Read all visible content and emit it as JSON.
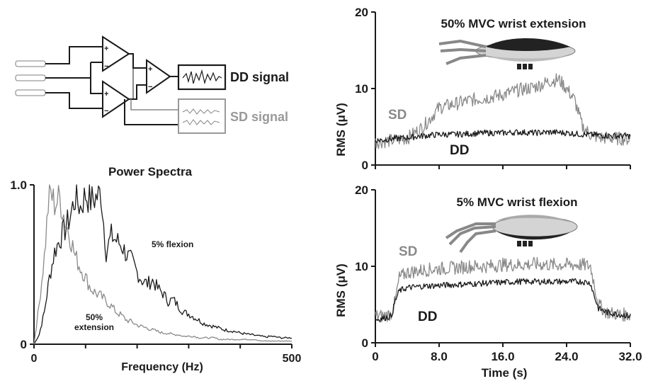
{
  "circuit": {
    "dd_label": "DD signal",
    "sd_label": "SD signal",
    "plus": "+",
    "minus": "−"
  },
  "colors": {
    "dd": "#1a1a1a",
    "sd": "#8a8a8a",
    "bone": "#d4d4d4",
    "muscle": "#222222"
  },
  "chart_data": [
    {
      "type": "line",
      "title": "Power Spectra",
      "xlabel": "Frequency (Hz)",
      "ylabel": "",
      "xlim": [
        0,
        500
      ],
      "ylim": [
        0,
        1.0
      ],
      "xticks": [
        "0",
        "500"
      ],
      "yticks": [
        "0",
        "1.0"
      ],
      "annotations": [
        "5% flexion",
        "50%",
        "extension"
      ],
      "series": [
        {
          "name": "5% flexion",
          "color": "#1a1a1a",
          "x": [
            0,
            10,
            20,
            30,
            40,
            50,
            60,
            70,
            80,
            90,
            100,
            110,
            120,
            130,
            140,
            150,
            160,
            170,
            180,
            190,
            200,
            210,
            220,
            230,
            240,
            250,
            260,
            270,
            280,
            290,
            300,
            310,
            320,
            330,
            340,
            350,
            360,
            370,
            380,
            390,
            400,
            410,
            420,
            430,
            440,
            450,
            460,
            470,
            480,
            490,
            500
          ],
          "y": [
            0.0,
            0.06,
            0.2,
            0.42,
            0.58,
            0.66,
            0.72,
            0.8,
            0.92,
            0.86,
            0.94,
            0.9,
            0.92,
            0.95,
            0.58,
            0.68,
            0.65,
            0.62,
            0.56,
            0.52,
            0.45,
            0.4,
            0.38,
            0.4,
            0.35,
            0.32,
            0.27,
            0.28,
            0.24,
            0.2,
            0.19,
            0.17,
            0.15,
            0.13,
            0.12,
            0.11,
            0.1,
            0.09,
            0.085,
            0.08,
            0.07,
            0.065,
            0.06,
            0.055,
            0.05,
            0.045,
            0.05,
            0.045,
            0.04,
            0.04,
            0.04
          ]
        },
        {
          "name": "50% extension",
          "color": "#8a8a8a",
          "x": [
            0,
            10,
            20,
            30,
            40,
            50,
            60,
            70,
            80,
            90,
            100,
            110,
            120,
            130,
            140,
            150,
            160,
            170,
            180,
            190,
            200,
            210,
            220,
            230,
            240,
            250,
            260,
            270,
            280,
            290,
            300,
            310,
            320,
            330,
            340,
            350,
            360,
            370,
            380,
            390,
            400,
            410,
            420,
            430,
            440,
            450,
            460,
            470,
            480,
            490,
            500
          ],
          "y": [
            0.0,
            0.25,
            0.55,
            0.97,
            0.88,
            0.92,
            0.78,
            0.68,
            0.55,
            0.48,
            0.42,
            0.35,
            0.32,
            0.3,
            0.27,
            0.24,
            0.2,
            0.18,
            0.15,
            0.14,
            0.12,
            0.11,
            0.1,
            0.09,
            0.08,
            0.07,
            0.07,
            0.06,
            0.06,
            0.05,
            0.05,
            0.05,
            0.04,
            0.04,
            0.04,
            0.04,
            0.03,
            0.03,
            0.03,
            0.03,
            0.03,
            0.03,
            0.03,
            0.03,
            0.02,
            0.02,
            0.02,
            0.02,
            0.02,
            0.02,
            0.02
          ]
        }
      ]
    },
    {
      "type": "line",
      "title": "50% MVC wrist extension",
      "xlabel": "",
      "ylabel": "RMS (μV)",
      "xlim": [
        0,
        32
      ],
      "ylim": [
        0,
        20
      ],
      "yticks": [
        "0",
        "10",
        "20"
      ],
      "series": [
        {
          "name": "SD",
          "color": "#8a8a8a",
          "x": [
            0,
            2,
            4,
            6,
            8,
            10,
            12,
            14,
            16,
            18,
            20,
            22,
            23,
            24,
            25,
            26,
            27,
            28,
            30,
            32
          ],
          "y": [
            3.0,
            3.2,
            3.5,
            5.0,
            7.5,
            8.0,
            8.5,
            8.8,
            9.2,
            9.8,
            10.2,
            11.0,
            11.2,
            10.0,
            8.5,
            5.0,
            4.0,
            3.6,
            3.5,
            3.4
          ]
        },
        {
          "name": "DD",
          "color": "#1a1a1a",
          "x": [
            0,
            2,
            4,
            6,
            8,
            10,
            12,
            14,
            16,
            18,
            20,
            22,
            24,
            26,
            28,
            30,
            32
          ],
          "y": [
            3.2,
            3.4,
            3.6,
            3.8,
            4.0,
            4.0,
            4.1,
            4.2,
            4.2,
            4.3,
            4.2,
            4.3,
            4.2,
            4.0,
            3.9,
            3.8,
            3.8
          ]
        }
      ]
    },
    {
      "type": "line",
      "title": "5% MVC wrist flexion",
      "xlabel": "Time (s)",
      "ylabel": "RMS (μV)",
      "xlim": [
        0,
        32
      ],
      "ylim": [
        0,
        20
      ],
      "xticks": [
        "0",
        "8.0",
        "16.0",
        "24.0",
        "32.0"
      ],
      "yticks": [
        "0",
        "10",
        "20"
      ],
      "series": [
        {
          "name": "SD",
          "color": "#8a8a8a",
          "x": [
            0,
            1,
            2,
            2.5,
            3,
            4,
            6,
            8,
            10,
            12,
            14,
            16,
            18,
            20,
            22,
            24,
            26,
            27,
            27.5,
            28,
            29,
            30,
            32
          ],
          "y": [
            3.5,
            3.5,
            3.8,
            5.5,
            8.5,
            9.2,
            9.5,
            9.7,
            9.8,
            10.0,
            10.0,
            10.2,
            10.2,
            10.3,
            10.2,
            10.2,
            10.2,
            10.0,
            7.5,
            5.0,
            4.0,
            3.8,
            3.6
          ]
        },
        {
          "name": "DD",
          "color": "#1a1a1a",
          "x": [
            0,
            1,
            2,
            2.5,
            3,
            4,
            6,
            8,
            10,
            12,
            14,
            16,
            18,
            20,
            22,
            24,
            26,
            27,
            27.5,
            28,
            29,
            30,
            32
          ],
          "y": [
            3.0,
            3.2,
            3.5,
            5.5,
            6.8,
            7.2,
            7.4,
            7.5,
            7.6,
            7.7,
            7.8,
            7.9,
            8.0,
            8.0,
            8.0,
            8.0,
            8.0,
            7.8,
            6.0,
            4.5,
            4.0,
            3.8,
            3.5
          ]
        }
      ]
    }
  ],
  "top_right_labels": {
    "sd": "SD",
    "dd": "DD"
  },
  "bottom_right_labels": {
    "sd": "SD",
    "dd": "DD"
  }
}
